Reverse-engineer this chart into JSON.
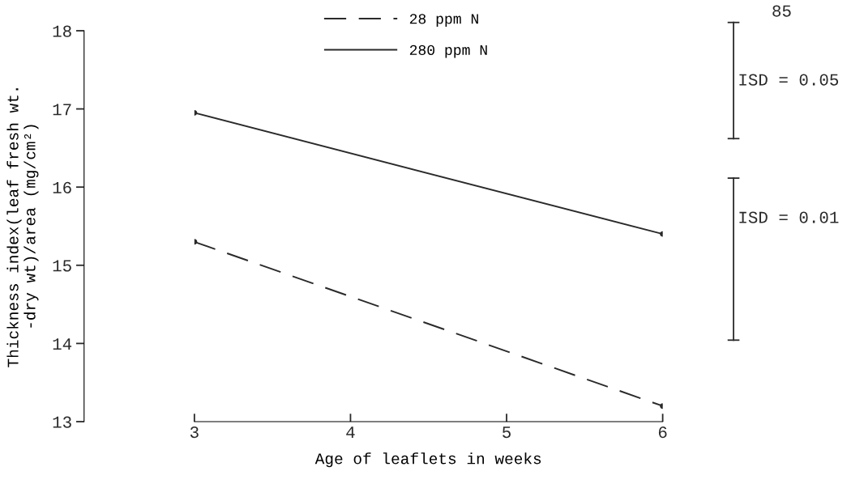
{
  "chart_data": {
    "type": "line",
    "xlabel": "Age of leaflets in weeks",
    "ylabel": "Thickness index(leaf fresh wt.\n-dry wt)/area (mg/cm²)",
    "x": [
      3,
      6
    ],
    "series": [
      {
        "name": "28 ppm N",
        "color": "#2a2a2a",
        "values": [
          15.3,
          13.2
        ],
        "line_style": "dashed"
      },
      {
        "name": "280 ppm N",
        "color": "#2a2a2a",
        "values": [
          16.95,
          15.4
        ],
        "line_style": "solid"
      }
    ],
    "xlim": [
      3,
      6
    ],
    "xticks": [
      3,
      4,
      5,
      6
    ],
    "ylim": [
      13,
      18
    ],
    "yticks": [
      13,
      14,
      15,
      16,
      17,
      18
    ],
    "marker": "circle",
    "grid": false,
    "legend": "top",
    "annotations": [
      "ISD = 0.05",
      "ISD = 0.01",
      "85"
    ]
  }
}
